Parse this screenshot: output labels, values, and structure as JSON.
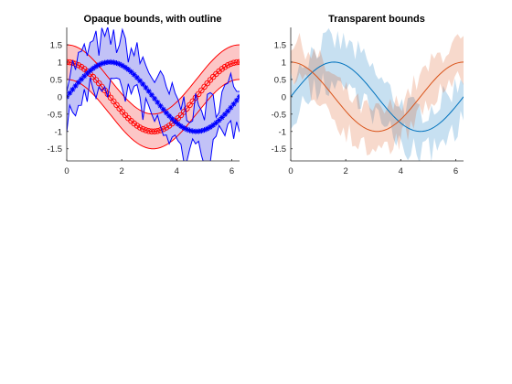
{
  "chart_data": [
    {
      "type": "line",
      "title": "Opaque bounds, with outline",
      "xlabel": "",
      "ylabel": "",
      "xlim": [
        0,
        6.2832
      ],
      "ylim": [
        -1.85,
        2.0
      ],
      "xticks": [
        0,
        2,
        4,
        6
      ],
      "xticklabels": [
        "0",
        "2",
        "4",
        "6"
      ],
      "yticks": [
        -1.5,
        -1,
        -0.5,
        0,
        0.5,
        1,
        1.5
      ],
      "yticklabels": [
        "-1.5",
        "-1",
        "-0.5",
        "0",
        "0.5",
        "1",
        "1.5"
      ],
      "grid": false,
      "legend": false,
      "series": [
        {
          "function": "cos(x)",
          "x_range": [
            0,
            6.2832
          ],
          "points": 60,
          "marker": "o",
          "line_color": "#ff0000",
          "band_fill": "#fcc6c6",
          "band_outline": "#ff0000",
          "band_halfwidth": 0.5
        },
        {
          "function": "sin(x)",
          "x_range": [
            0,
            6.2832
          ],
          "points": 60,
          "marker": "*",
          "line_color": "#0000ff",
          "band_fill": "#c2c2f7",
          "band_outline": "#0000ff",
          "band_halfwidth_varies": [
            0.15,
            1.1
          ]
        }
      ]
    },
    {
      "type": "line",
      "title": "Transparent bounds",
      "xlabel": "",
      "ylabel": "",
      "xlim": [
        0,
        6.2832
      ],
      "ylim": [
        -1.85,
        2.0
      ],
      "xticks": [
        0,
        2,
        4,
        6
      ],
      "xticklabels": [
        "0",
        "2",
        "4",
        "6"
      ],
      "yticks": [
        -1.5,
        -1,
        -0.5,
        0,
        0.5,
        1,
        1.5
      ],
      "yticklabels": [
        "-1.5",
        "-1",
        "-0.5",
        "0",
        "0.5",
        "1",
        "1.5"
      ],
      "grid": false,
      "legend": false,
      "series": [
        {
          "function": "sin(x)",
          "x_range": [
            0,
            6.2832
          ],
          "points": 60,
          "line_color": "#0072bd",
          "band_fill": "#0072bd",
          "band_opacity": 0.22,
          "band_halfwidth_varies": [
            0.2,
            1.0
          ]
        },
        {
          "function": "cos(x)",
          "x_range": [
            0,
            6.2832
          ],
          "points": 60,
          "line_color": "#d95319",
          "band_fill": "#d95319",
          "band_opacity": 0.22,
          "band_halfwidth_varies": [
            0.2,
            0.9
          ]
        }
      ]
    }
  ]
}
